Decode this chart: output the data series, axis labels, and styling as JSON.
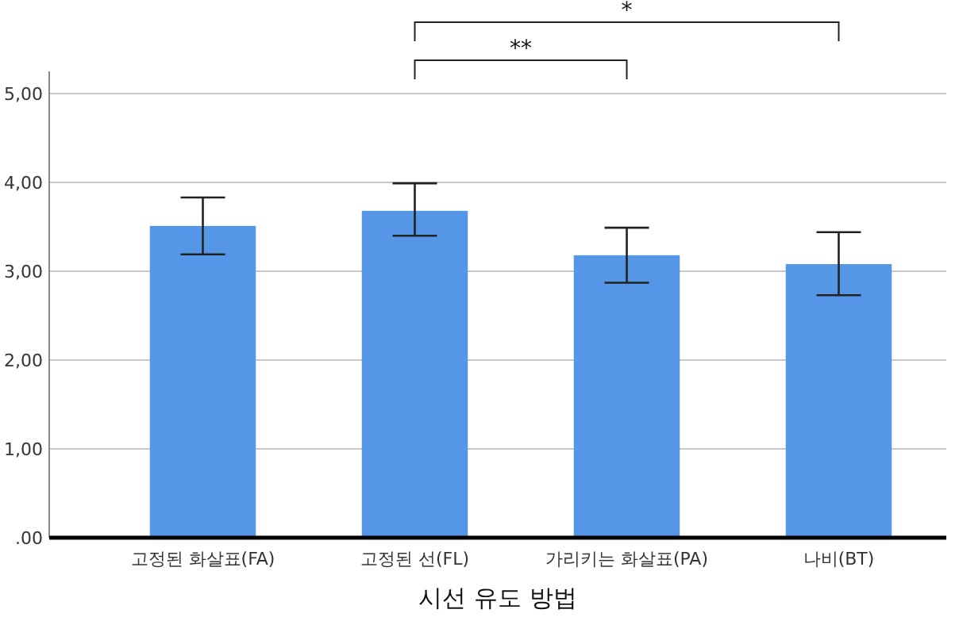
{
  "chart_data": {
    "type": "bar",
    "xlabel": "시선 유도 방법",
    "categories": [
      "고정된 화살표(FA)",
      "고정된 선(FL)",
      "가리키는 화살표(PA)",
      "나비(BT)"
    ],
    "values": [
      3.51,
      3.68,
      3.18,
      3.08
    ],
    "errors": [
      [
        3.19,
        3.83
      ],
      [
        3.4,
        3.99
      ],
      [
        2.87,
        3.49
      ],
      [
        2.73,
        3.44
      ]
    ],
    "color": "#5596e6",
    "ylim": [
      0,
      5.25
    ],
    "yticks": [
      {
        "value": 0,
        "label": ".00"
      },
      {
        "value": 1,
        "label": "1,00"
      },
      {
        "value": 2,
        "label": "2,00"
      },
      {
        "value": 3,
        "label": "3,00"
      },
      {
        "value": 4,
        "label": "4,00"
      },
      {
        "value": 5,
        "label": "5,00"
      }
    ],
    "grid": "y",
    "annotations": [
      "**",
      "*"
    ]
  }
}
